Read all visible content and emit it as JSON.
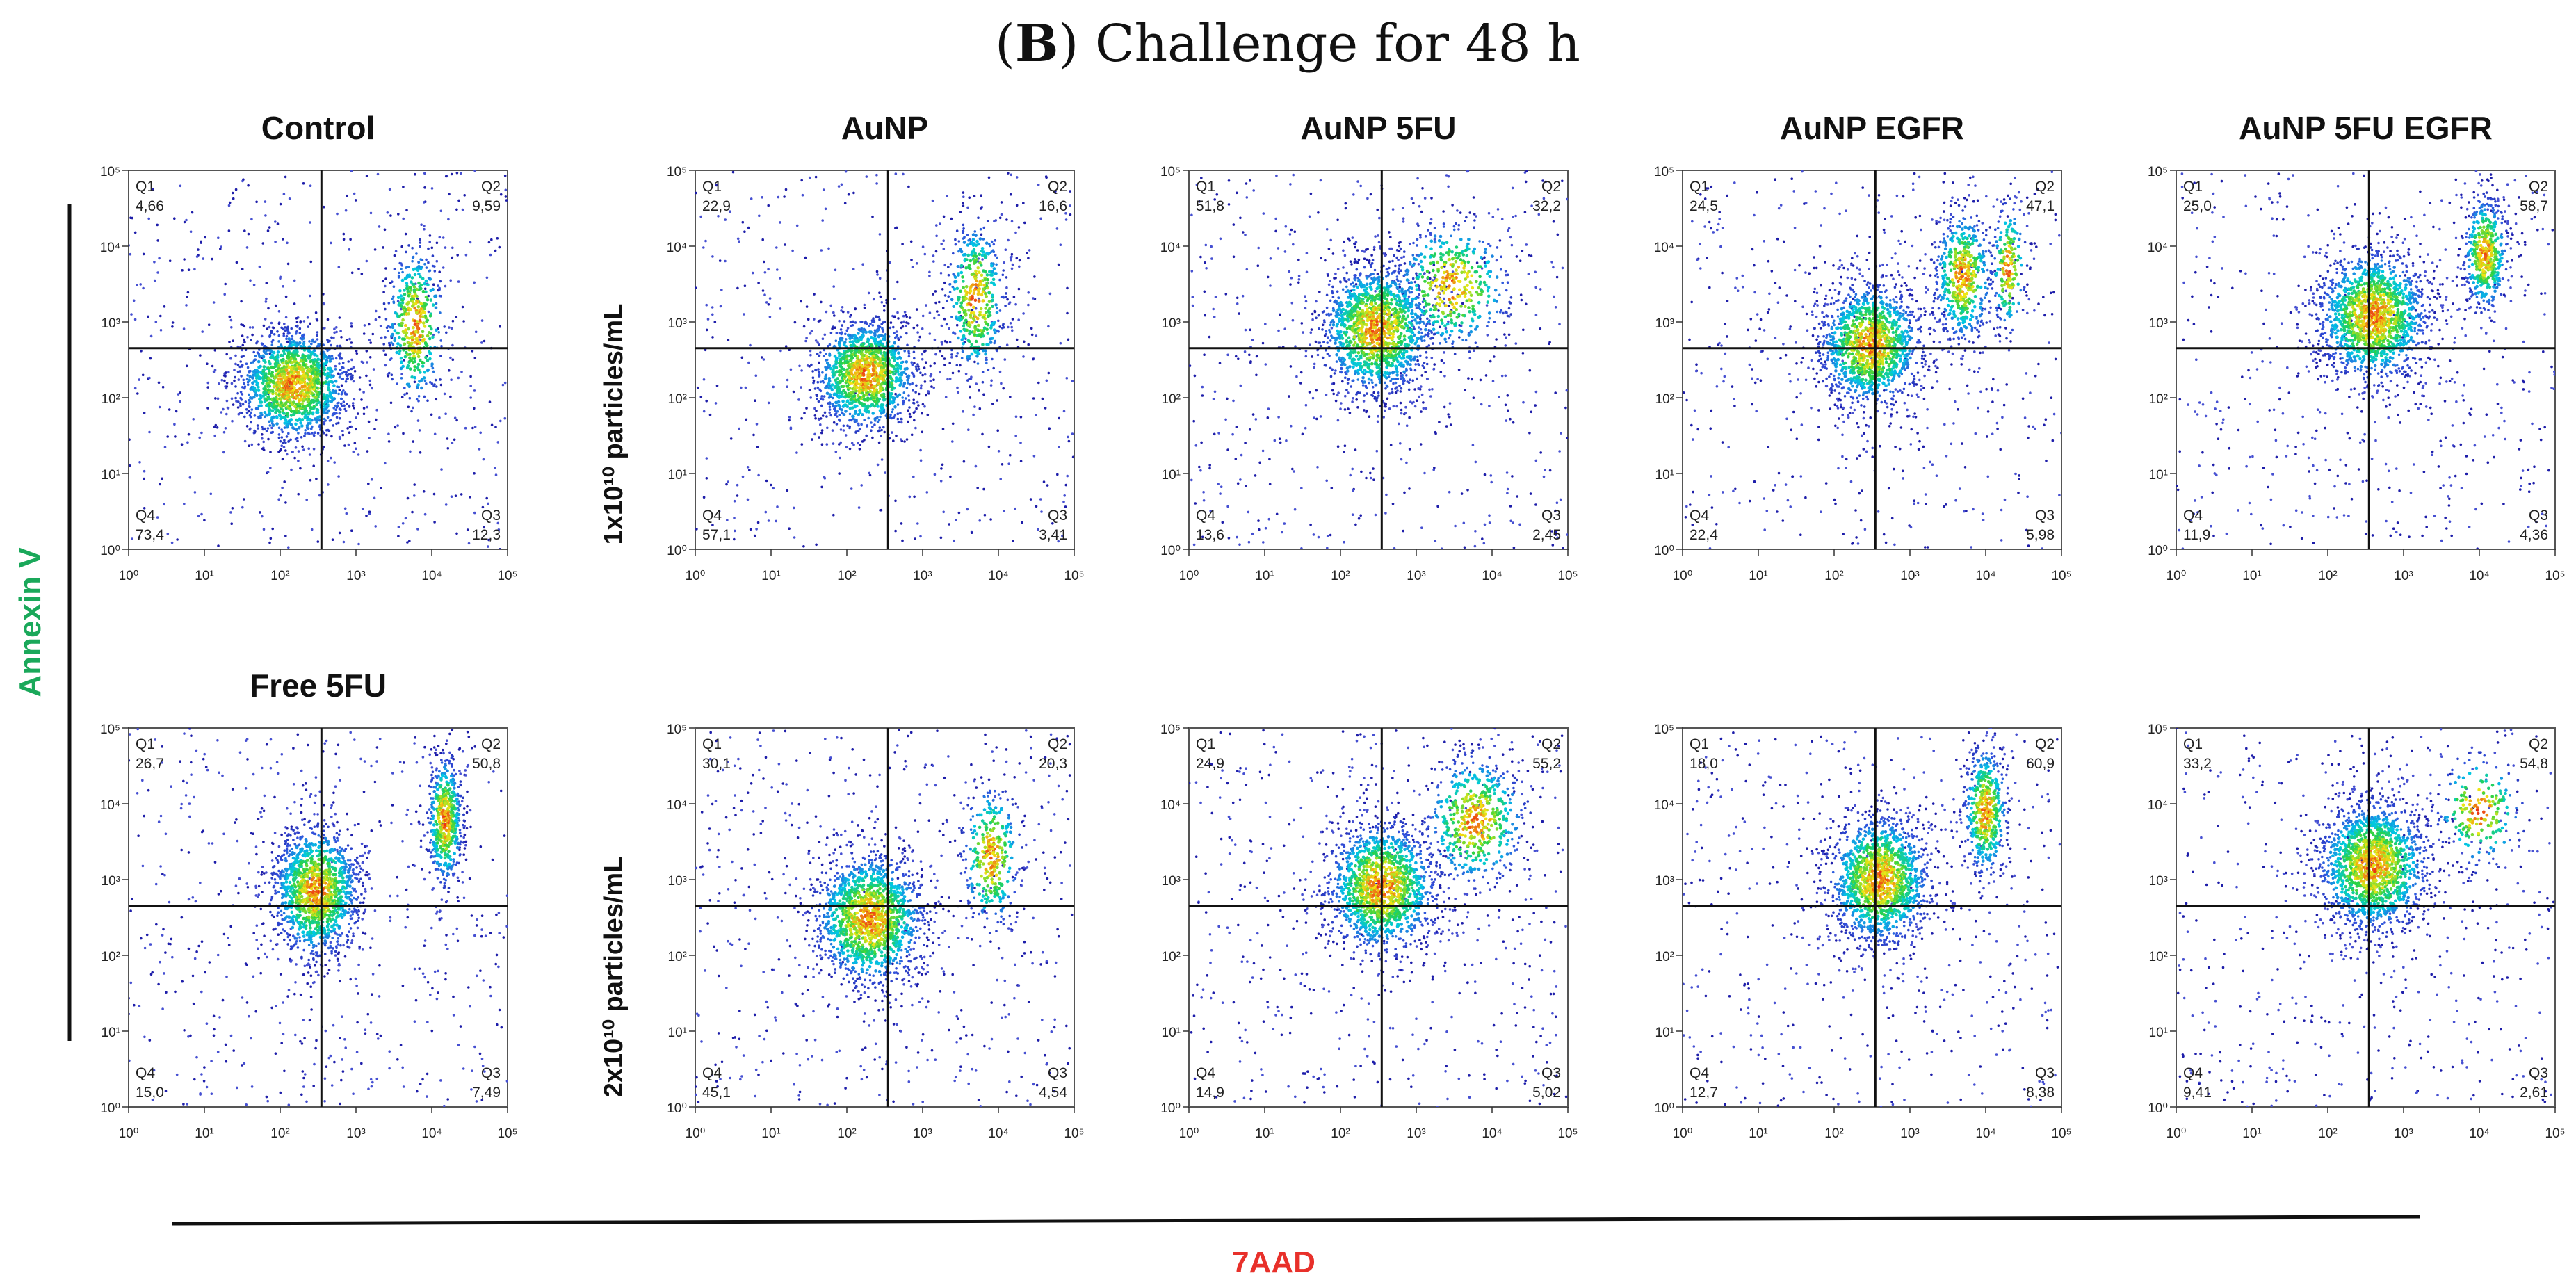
{
  "figure_title": {
    "label": "B",
    "text": "Challenge for 48 h"
  },
  "axis_labels": {
    "y": "Annexin V",
    "x": "7AAD"
  },
  "colors": {
    "y_label": "#1aa85a",
    "x_label": "#e8302a"
  },
  "row_labels": [
    "1x10¹⁰ particles/mL",
    "2x10¹⁰ particles/mL"
  ],
  "chart_data": {
    "type": "scatter",
    "subtype": "flow-cytometry quadrant density plots",
    "xlabel": "7AAD",
    "ylabel": "Annexin V",
    "xscale": "log",
    "yscale": "log",
    "xlim": [
      1,
      100000
    ],
    "ylim": [
      1,
      100000
    ],
    "x_ticks": [
      "10⁰",
      "10¹",
      "10²",
      "10³",
      "10⁴",
      "10⁵"
    ],
    "y_ticks": [
      "10⁰",
      "10¹",
      "10²",
      "10³",
      "10⁴",
      "10⁵"
    ],
    "quadrant_labels": [
      "Q1",
      "Q2",
      "Q3",
      "Q4"
    ],
    "plots": [
      {
        "title": "Control",
        "row": 0,
        "col": 0,
        "gate": {
          "x": 350,
          "y": 450
        },
        "quadrants": {
          "Q1": "4,66",
          "Q2": "9,59",
          "Q3": "12,3",
          "Q4": "73,4"
        },
        "clusters": [
          {
            "x": 150,
            "y": 150,
            "sx": 0.38,
            "sy": 0.38,
            "n": 1500
          },
          {
            "x": 6000,
            "y": 900,
            "sx": 0.2,
            "sy": 0.55,
            "n": 450
          }
        ]
      },
      {
        "title": "AuNP",
        "row": 0,
        "col": 1,
        "gate": {
          "x": 350,
          "y": 450
        },
        "quadrants": {
          "Q1": "22,9",
          "Q2": "16,6",
          "Q3": "3,41",
          "Q4": "57,1"
        },
        "clusters": [
          {
            "x": 180,
            "y": 200,
            "sx": 0.35,
            "sy": 0.38,
            "n": 1300
          },
          {
            "x": 5000,
            "y": 2000,
            "sx": 0.2,
            "sy": 0.55,
            "n": 450
          }
        ]
      },
      {
        "title": "AuNP 5FU",
        "row": 0,
        "col": 2,
        "gate": {
          "x": 350,
          "y": 450
        },
        "quadrants": {
          "Q1": "51,8",
          "Q2": "32,2",
          "Q3": "2,45",
          "Q4": "13,6"
        },
        "clusters": [
          {
            "x": 300,
            "y": 800,
            "sx": 0.38,
            "sy": 0.45,
            "n": 1500
          },
          {
            "x": 3000,
            "y": 3000,
            "sx": 0.4,
            "sy": 0.45,
            "n": 450
          }
        ]
      },
      {
        "title": "AuNP EGFR",
        "row": 0,
        "col": 3,
        "gate": {
          "x": 350,
          "y": 450
        },
        "quadrants": {
          "Q1": "24,5",
          "Q2": "47,1",
          "Q3": "5,98",
          "Q4": "22,4"
        },
        "clusters": [
          {
            "x": 300,
            "y": 500,
            "sx": 0.35,
            "sy": 0.42,
            "n": 1300
          },
          {
            "x": 5000,
            "y": 4000,
            "sx": 0.2,
            "sy": 0.45,
            "n": 550
          },
          {
            "x": 20000,
            "y": 5000,
            "sx": 0.12,
            "sy": 0.45,
            "n": 200
          }
        ]
      },
      {
        "title": "AuNP 5FU EGFR",
        "row": 0,
        "col": 4,
        "gate": {
          "x": 350,
          "y": 450
        },
        "quadrants": {
          "Q1": "25,0",
          "Q2": "58,7",
          "Q3": "4,36",
          "Q4": "11,9"
        },
        "clusters": [
          {
            "x": 400,
            "y": 1200,
            "sx": 0.38,
            "sy": 0.45,
            "n": 1500
          },
          {
            "x": 12000,
            "y": 8000,
            "sx": 0.15,
            "sy": 0.4,
            "n": 500
          }
        ]
      },
      {
        "title": "Free 5FU",
        "row": 1,
        "col": 0,
        "gate": {
          "x": 350,
          "y": 450
        },
        "quadrants": {
          "Q1": "26,7",
          "Q2": "50,8",
          "Q3": "7,49",
          "Q4": "15,0"
        },
        "clusters": [
          {
            "x": 300,
            "y": 700,
            "sx": 0.3,
            "sy": 0.45,
            "n": 1400
          },
          {
            "x": 15000,
            "y": 6000,
            "sx": 0.12,
            "sy": 0.45,
            "n": 550
          }
        ]
      },
      {
        "title": "",
        "row": 1,
        "col": 1,
        "gate": {
          "x": 350,
          "y": 450
        },
        "quadrants": {
          "Q1": "30,1",
          "Q2": "20,3",
          "Q3": "4,54",
          "Q4": "45,1"
        },
        "clusters": [
          {
            "x": 200,
            "y": 300,
            "sx": 0.38,
            "sy": 0.45,
            "n": 1500
          },
          {
            "x": 8000,
            "y": 2000,
            "sx": 0.2,
            "sy": 0.5,
            "n": 350
          }
        ]
      },
      {
        "title": "",
        "row": 1,
        "col": 2,
        "gate": {
          "x": 350,
          "y": 450
        },
        "quadrants": {
          "Q1": "24,9",
          "Q2": "55,2",
          "Q3": "5,02",
          "Q4": "14,9"
        },
        "clusters": [
          {
            "x": 350,
            "y": 800,
            "sx": 0.38,
            "sy": 0.45,
            "n": 1400
          },
          {
            "x": 6000,
            "y": 6000,
            "sx": 0.35,
            "sy": 0.45,
            "n": 550
          }
        ]
      },
      {
        "title": "",
        "row": 1,
        "col": 3,
        "gate": {
          "x": 350,
          "y": 450
        },
        "quadrants": {
          "Q1": "18,0",
          "Q2": "60,9",
          "Q3": "8,38",
          "Q4": "12,7"
        },
        "clusters": [
          {
            "x": 400,
            "y": 1000,
            "sx": 0.35,
            "sy": 0.45,
            "n": 1400
          },
          {
            "x": 10000,
            "y": 8000,
            "sx": 0.15,
            "sy": 0.45,
            "n": 500
          }
        ]
      },
      {
        "title": "",
        "row": 1,
        "col": 4,
        "gate": {
          "x": 350,
          "y": 450
        },
        "quadrants": {
          "Q1": "33,2",
          "Q2": "54,8",
          "Q3": "2,61",
          "Q4": "9,41"
        },
        "clusters": [
          {
            "x": 400,
            "y": 1500,
            "sx": 0.38,
            "sy": 0.45,
            "n": 1600
          },
          {
            "x": 10000,
            "y": 8000,
            "sx": 0.3,
            "sy": 0.4,
            "n": 200
          }
        ]
      }
    ]
  }
}
